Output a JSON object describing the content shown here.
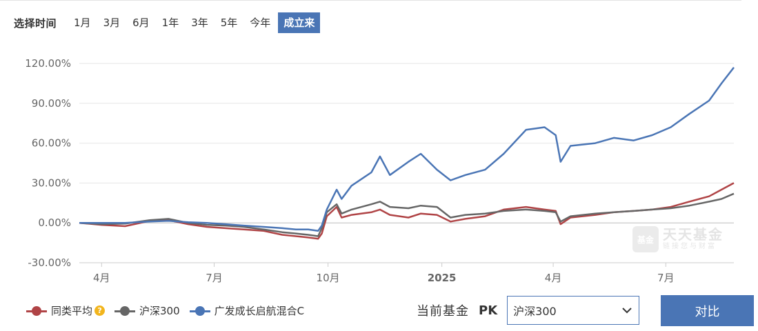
{
  "range": {
    "title": "选择时间",
    "options": [
      "1月",
      "3月",
      "6月",
      "1年",
      "3年",
      "5年",
      "今年",
      "成立来"
    ],
    "selected": "成立来"
  },
  "legend": {
    "items": [
      {
        "label": "同类平均",
        "color": "#b04446",
        "help": "?"
      },
      {
        "label": "沪深300",
        "color": "#666666"
      },
      {
        "label": "广发成长启航混合C",
        "color": "#4a75b5"
      }
    ]
  },
  "pk": {
    "label": "当前基金",
    "tag": "PK",
    "selected": "沪深300",
    "compare_label": "对比"
  },
  "watermark": {
    "icon_text": "基金",
    "brand": "天天基金",
    "slogan": "链接您与财富"
  },
  "colors": {
    "accent": "#4a75b5",
    "grid": "#e6e6e6",
    "axis": "#cccccc"
  },
  "chart_data": {
    "type": "line",
    "x_start": "2024-03-14",
    "x_end": "2025-08-25",
    "x_ticks": [
      {
        "date": "2024-04-01",
        "label": "4月",
        "bold": false
      },
      {
        "date": "2024-07-01",
        "label": "7月",
        "bold": false
      },
      {
        "date": "2024-10-01",
        "label": "10月",
        "bold": false
      },
      {
        "date": "2025-01-01",
        "label": "2025",
        "bold": true
      },
      {
        "date": "2025-04-01",
        "label": "4月",
        "bold": false
      },
      {
        "date": "2025-07-01",
        "label": "7月",
        "bold": false
      }
    ],
    "y_ticks": [
      -30,
      0,
      30,
      60,
      90,
      120
    ],
    "y_tick_labels": [
      "-30.00%",
      "0.00%",
      "30.00%",
      "60.00%",
      "90.00%",
      "120.00%"
    ],
    "ylim": [
      -30,
      120
    ],
    "series": [
      {
        "name": "同类平均",
        "color": "#b04446",
        "points": [
          [
            "2024-03-14",
            0
          ],
          [
            "2024-04-01",
            -1.5
          ],
          [
            "2024-04-20",
            -2.5
          ],
          [
            "2024-05-10",
            1.5
          ],
          [
            "2024-05-25",
            2
          ],
          [
            "2024-06-10",
            -1
          ],
          [
            "2024-06-25",
            -3
          ],
          [
            "2024-07-10",
            -4
          ],
          [
            "2024-07-25",
            -5
          ],
          [
            "2024-08-10",
            -6
          ],
          [
            "2024-08-25",
            -9
          ],
          [
            "2024-09-05",
            -10
          ],
          [
            "2024-09-15",
            -11
          ],
          [
            "2024-09-23",
            -12
          ],
          [
            "2024-09-26",
            -8
          ],
          [
            "2024-09-30",
            5
          ],
          [
            "2024-10-08",
            12
          ],
          [
            "2024-10-12",
            4
          ],
          [
            "2024-10-20",
            6
          ],
          [
            "2024-11-05",
            8
          ],
          [
            "2024-11-12",
            10
          ],
          [
            "2024-11-20",
            6
          ],
          [
            "2024-12-05",
            4
          ],
          [
            "2024-12-15",
            7
          ],
          [
            "2024-12-28",
            6
          ],
          [
            "2025-01-08",
            1
          ],
          [
            "2025-01-20",
            3
          ],
          [
            "2025-02-05",
            5
          ],
          [
            "2025-02-20",
            10
          ],
          [
            "2025-03-10",
            12
          ],
          [
            "2025-03-25",
            10
          ],
          [
            "2025-04-03",
            9
          ],
          [
            "2025-04-07",
            -1
          ],
          [
            "2025-04-15",
            4
          ],
          [
            "2025-05-05",
            6
          ],
          [
            "2025-05-20",
            8
          ],
          [
            "2025-06-05",
            9
          ],
          [
            "2025-06-20",
            10
          ],
          [
            "2025-07-05",
            12
          ],
          [
            "2025-07-20",
            16
          ],
          [
            "2025-08-05",
            20
          ],
          [
            "2025-08-15",
            25
          ],
          [
            "2025-08-25",
            30
          ]
        ]
      },
      {
        "name": "沪深300",
        "color": "#666666",
        "points": [
          [
            "2024-03-14",
            0
          ],
          [
            "2024-04-01",
            -1
          ],
          [
            "2024-04-20",
            -0.5
          ],
          [
            "2024-05-10",
            2
          ],
          [
            "2024-05-25",
            3
          ],
          [
            "2024-06-10",
            0
          ],
          [
            "2024-06-25",
            -1.5
          ],
          [
            "2024-07-10",
            -2
          ],
          [
            "2024-07-25",
            -3
          ],
          [
            "2024-08-10",
            -5
          ],
          [
            "2024-08-25",
            -7
          ],
          [
            "2024-09-05",
            -8
          ],
          [
            "2024-09-15",
            -9
          ],
          [
            "2024-09-23",
            -10
          ],
          [
            "2024-09-26",
            -4
          ],
          [
            "2024-09-30",
            8
          ],
          [
            "2024-10-08",
            14
          ],
          [
            "2024-10-12",
            7
          ],
          [
            "2024-10-20",
            10
          ],
          [
            "2024-11-05",
            14
          ],
          [
            "2024-11-12",
            16
          ],
          [
            "2024-11-20",
            12
          ],
          [
            "2024-12-05",
            11
          ],
          [
            "2024-12-15",
            13
          ],
          [
            "2024-12-28",
            12
          ],
          [
            "2025-01-08",
            4
          ],
          [
            "2025-01-20",
            6
          ],
          [
            "2025-02-05",
            7
          ],
          [
            "2025-02-20",
            9
          ],
          [
            "2025-03-10",
            10
          ],
          [
            "2025-03-25",
            9
          ],
          [
            "2025-04-03",
            8
          ],
          [
            "2025-04-07",
            1
          ],
          [
            "2025-04-15",
            5
          ],
          [
            "2025-05-05",
            7
          ],
          [
            "2025-05-20",
            8
          ],
          [
            "2025-06-05",
            9
          ],
          [
            "2025-06-20",
            10
          ],
          [
            "2025-07-05",
            11
          ],
          [
            "2025-07-20",
            13
          ],
          [
            "2025-08-05",
            16
          ],
          [
            "2025-08-15",
            18
          ],
          [
            "2025-08-25",
            22
          ]
        ]
      },
      {
        "name": "广发成长启航混合C",
        "color": "#4a75b5",
        "points": [
          [
            "2024-03-14",
            0
          ],
          [
            "2024-04-01",
            0
          ],
          [
            "2024-04-20",
            0
          ],
          [
            "2024-05-10",
            1
          ],
          [
            "2024-05-25",
            1.5
          ],
          [
            "2024-06-10",
            0.5
          ],
          [
            "2024-06-25",
            0
          ],
          [
            "2024-07-10",
            -1
          ],
          [
            "2024-07-25",
            -2
          ],
          [
            "2024-08-10",
            -3
          ],
          [
            "2024-08-25",
            -4
          ],
          [
            "2024-09-05",
            -5
          ],
          [
            "2024-09-15",
            -5
          ],
          [
            "2024-09-23",
            -6
          ],
          [
            "2024-09-26",
            -2
          ],
          [
            "2024-09-30",
            10
          ],
          [
            "2024-10-08",
            25
          ],
          [
            "2024-10-12",
            18
          ],
          [
            "2024-10-20",
            28
          ],
          [
            "2024-11-05",
            38
          ],
          [
            "2024-11-12",
            50
          ],
          [
            "2024-11-20",
            36
          ],
          [
            "2024-12-05",
            46
          ],
          [
            "2024-12-15",
            52
          ],
          [
            "2024-12-28",
            40
          ],
          [
            "2025-01-08",
            32
          ],
          [
            "2025-01-20",
            36
          ],
          [
            "2025-02-05",
            40
          ],
          [
            "2025-02-20",
            52
          ],
          [
            "2025-03-10",
            70
          ],
          [
            "2025-03-25",
            72
          ],
          [
            "2025-04-03",
            66
          ],
          [
            "2025-04-07",
            46
          ],
          [
            "2025-04-15",
            58
          ],
          [
            "2025-05-05",
            60
          ],
          [
            "2025-05-20",
            64
          ],
          [
            "2025-06-05",
            62
          ],
          [
            "2025-06-20",
            66
          ],
          [
            "2025-07-05",
            72
          ],
          [
            "2025-07-20",
            82
          ],
          [
            "2025-08-05",
            92
          ],
          [
            "2025-08-15",
            105
          ],
          [
            "2025-08-25",
            117
          ]
        ]
      }
    ]
  }
}
